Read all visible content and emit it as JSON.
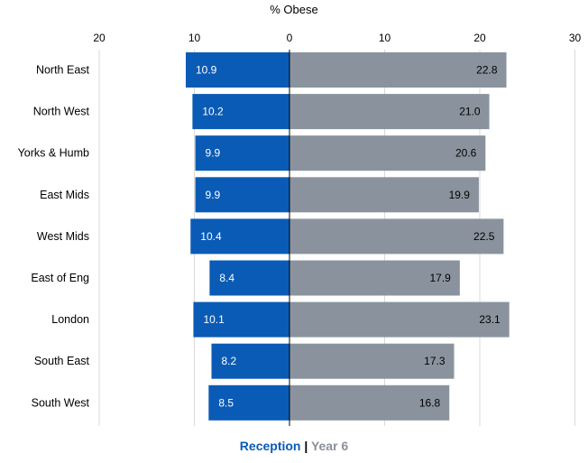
{
  "chart_data": {
    "type": "bar",
    "title": "% Obese",
    "orientation": "horizontal-diverging",
    "categories": [
      "North East",
      "North West",
      "Yorks & Humb",
      "East Mids",
      "West Mids",
      "East of Eng",
      "London",
      "South East",
      "South West"
    ],
    "series": [
      {
        "name": "Reception",
        "values": [
          10.9,
          10.2,
          9.9,
          9.9,
          10.4,
          8.4,
          10.1,
          8.2,
          8.5
        ],
        "color": "#0a5bb5",
        "direction": "left"
      },
      {
        "name": "Year 6",
        "values": [
          22.8,
          21.0,
          20.6,
          19.9,
          22.5,
          17.9,
          23.1,
          17.3,
          16.8
        ],
        "color": "#8a939d",
        "direction": "right"
      }
    ],
    "xlim": [
      -20,
      30
    ],
    "ticks": [
      -20,
      -10,
      0,
      10,
      20,
      30
    ],
    "tick_labels": [
      "20",
      "10",
      "0",
      "10",
      "20",
      "30"
    ],
    "grid": true,
    "legend": "bottom-center"
  },
  "legend": {
    "reception": "Reception",
    "separator": "|",
    "year6": "Year 6"
  }
}
